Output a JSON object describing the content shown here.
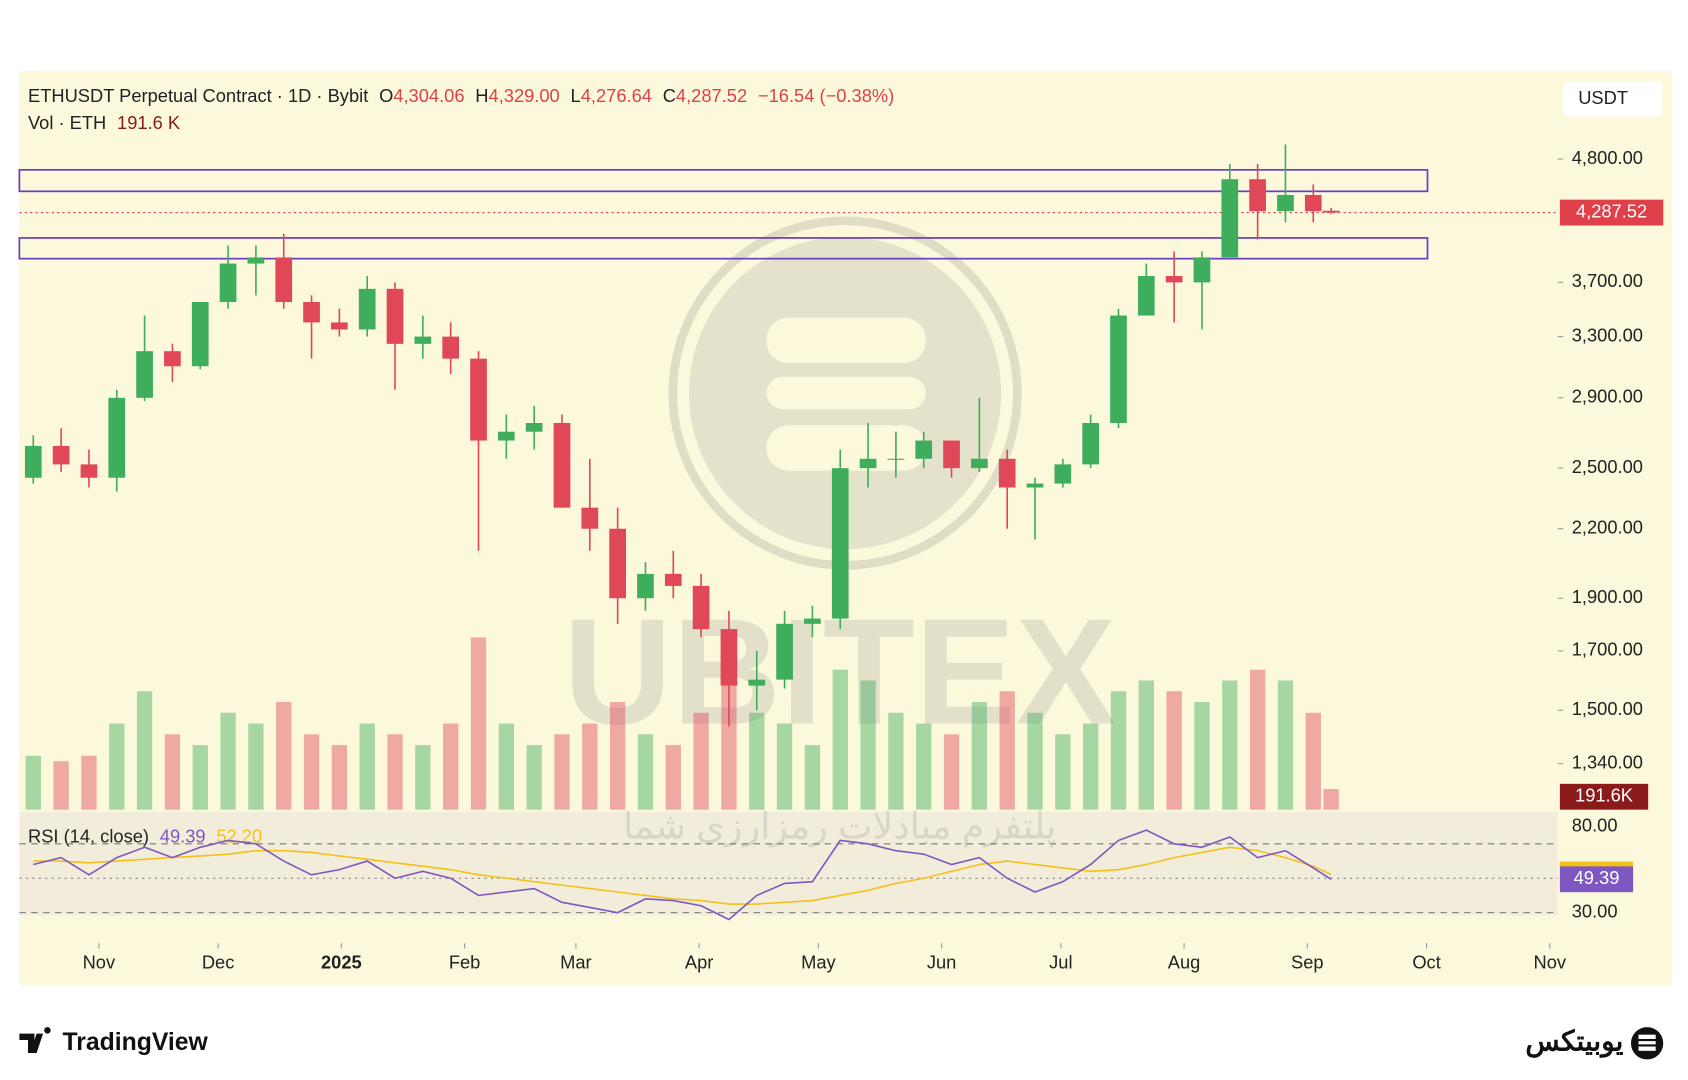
{
  "chart_data": {
    "type": "candlestick",
    "header": {
      "symbol": "ETHUSDT Perpetual Contract · 1D · Bybit",
      "open_label": "O",
      "open": "4,304.06",
      "high_label": "H",
      "high": "4,329.00",
      "low_label": "L",
      "low": "4,276.64",
      "close_label": "C",
      "close": "4,287.52",
      "change": "−16.54 (−0.38%)",
      "volume_label": "Vol · ETH",
      "volume": "191.6 K"
    },
    "currency": "USDT",
    "log_scale": true,
    "grid": false,
    "up_color": "#3fae5c",
    "down_color": "#e0485a",
    "xlim": [
      0,
      387
    ],
    "xticks": [
      {
        "value": 20,
        "label": "Nov"
      },
      {
        "value": 50,
        "label": "Dec"
      },
      {
        "value": 81,
        "label": "2025"
      },
      {
        "value": 112,
        "label": "Feb"
      },
      {
        "value": 140,
        "label": "Mar"
      },
      {
        "value": 171,
        "label": "Apr"
      },
      {
        "value": 201,
        "label": "May"
      },
      {
        "value": 232,
        "label": "Jun"
      },
      {
        "value": 262,
        "label": "Jul"
      },
      {
        "value": 293,
        "label": "Aug"
      },
      {
        "value": 324,
        "label": "Sep"
      },
      {
        "value": 354,
        "label": "Oct"
      },
      {
        "value": 385,
        "label": "Nov"
      }
    ],
    "ylim": [
      1216,
      5752
    ],
    "yticks": [
      {
        "value": 4800,
        "label": "4,800.00"
      },
      {
        "value": 3700,
        "label": "3,700.00"
      },
      {
        "value": 3300,
        "label": "3,300.00"
      },
      {
        "value": 2900,
        "label": "2,900.00"
      },
      {
        "value": 2500,
        "label": "2,500.00"
      },
      {
        "value": 2200,
        "label": "2,200.00"
      },
      {
        "value": 1900,
        "label": "1,900.00"
      },
      {
        "value": 1700,
        "label": "1,700.00"
      },
      {
        "value": 1500,
        "label": "1,500.00"
      },
      {
        "value": 1340,
        "label": "1,340.00"
      }
    ],
    "last_price": {
      "value": 4287.52,
      "label": "4,287.52"
    },
    "zones": {
      "color": "#6a3fc0",
      "ranges": [
        [
          4484,
          4692
        ],
        [
          3890,
          4064
        ]
      ]
    },
    "candles": {
      "x": [
        3.5,
        10.5,
        17.5,
        24.5,
        31.5,
        38.5,
        45.5,
        52.5,
        59.5,
        66.5,
        73.5,
        80.5,
        87.5,
        94.5,
        101.5,
        108.5,
        115.5,
        122.5,
        129.5,
        136.5,
        143.5,
        150.5,
        157.5,
        164.5,
        171.5,
        178.5,
        185.5,
        192.5,
        199.5,
        206.5,
        213.5,
        220.5,
        227.5,
        234.5,
        241.5,
        248.5,
        255.5,
        262.5,
        269.5,
        276.5,
        283.5,
        290.5,
        297.5,
        304.5,
        311.5,
        318.5,
        325.5,
        330
      ],
      "open": [
        2450,
        2620,
        2520,
        2450,
        2900,
        3200,
        3100,
        3550,
        3850,
        3900,
        3550,
        3400,
        3350,
        3650,
        3250,
        3300,
        3150,
        2650,
        2700,
        2750,
        2300,
        2200,
        1900,
        2000,
        1950,
        1780,
        1580,
        1600,
        1800,
        1820,
        2500,
        2550,
        2550,
        2650,
        2500,
        2550,
        2400,
        2420,
        2520,
        2750,
        3450,
        3750,
        3700,
        3900,
        4600,
        4300,
        4450,
        4304.06
      ],
      "high": [
        2680,
        2720,
        2600,
        2950,
        3450,
        3250,
        3550,
        4000,
        4000,
        4100,
        3600,
        3500,
        3750,
        3700,
        3450,
        3400,
        3200,
        2800,
        2850,
        2800,
        2550,
        2300,
        2050,
        2100,
        2000,
        1850,
        1700,
        1850,
        1870,
        2600,
        2750,
        2700,
        2700,
        2650,
        2900,
        2600,
        2450,
        2550,
        2800,
        3500,
        3850,
        3950,
        3950,
        4750,
        4750,
        4950,
        4550,
        4329
      ],
      "low": [
        2420,
        2480,
        2400,
        2380,
        2880,
        3000,
        3080,
        3500,
        3600,
        3500,
        3150,
        3300,
        3300,
        2950,
        3150,
        3050,
        2100,
        2550,
        2600,
        2300,
        2100,
        1800,
        1850,
        1900,
        1750,
        1450,
        1500,
        1570,
        1750,
        1780,
        2400,
        2450,
        2500,
        2450,
        2480,
        2200,
        2150,
        2400,
        2500,
        2720,
        3450,
        3400,
        3350,
        3900,
        4050,
        4200,
        4200,
        4276.64
      ],
      "close": [
        2620,
        2520,
        2450,
        2900,
        3200,
        3100,
        3550,
        3850,
        3900,
        3550,
        3400,
        3350,
        3650,
        3250,
        3300,
        3150,
        2650,
        2700,
        2750,
        2300,
        2200,
        1900,
        2000,
        1950,
        1780,
        1580,
        1600,
        1800,
        1820,
        2500,
        2550,
        2550,
        2650,
        2500,
        2550,
        2400,
        2420,
        2520,
        2750,
        3450,
        3750,
        3700,
        3900,
        4600,
        4300,
        4450,
        4300,
        4287.52
      ]
    },
    "volume": {
      "values": [
        500000,
        450000,
        500000,
        800000,
        1100000,
        700000,
        600000,
        900000,
        800000,
        1000000,
        700000,
        600000,
        800000,
        700000,
        600000,
        800000,
        1600000,
        800000,
        600000,
        700000,
        800000,
        1000000,
        700000,
        600000,
        900000,
        1300000,
        900000,
        800000,
        600000,
        1300000,
        1200000,
        900000,
        800000,
        700000,
        1000000,
        1100000,
        900000,
        700000,
        800000,
        1100000,
        1200000,
        1100000,
        1000000,
        1200000,
        1300000,
        1200000,
        900000,
        191600
      ],
      "label": "191.6K",
      "lim": [
        0,
        2000000
      ],
      "tag_color": "#8b1a1a"
    },
    "rsi": {
      "name": "RSI (14, close)",
      "value_label": "49.39",
      "ma_label": "52.20",
      "color": "#7e57c2",
      "ma_color": "#f2c21b",
      "values": [
        58,
        62,
        52,
        62,
        68,
        62,
        68,
        72,
        70,
        60,
        52,
        55,
        60,
        50,
        54,
        50,
        40,
        42,
        44,
        36,
        33,
        30,
        38,
        37,
        34,
        26,
        40,
        47,
        48,
        72,
        70,
        66,
        64,
        58,
        62,
        50,
        42,
        48,
        58,
        72,
        78,
        70,
        68,
        74,
        62,
        66,
        56,
        49.39
      ],
      "ma": [
        60,
        60,
        59,
        60,
        61,
        62,
        63,
        64,
        66,
        66,
        65,
        63,
        61,
        59,
        57,
        55,
        52,
        50,
        48,
        46,
        44,
        42,
        40,
        38,
        37,
        35,
        35,
        36,
        37,
        40,
        43,
        47,
        50,
        54,
        58,
        60,
        58,
        56,
        54,
        55,
        58,
        62,
        65,
        68,
        66,
        62,
        57,
        52.2
      ],
      "lim": [
        16,
        88
      ],
      "yticks": [
        {
          "value": 80,
          "label": "80.00"
        },
        {
          "value": 30,
          "label": "30.00"
        }
      ],
      "bands": [
        70,
        50,
        30
      ]
    },
    "watermark": {
      "brand": "UBITEX",
      "tagline": "پلتفرم مبادلات رمزارزی شما"
    },
    "footer": {
      "left": "TradingView",
      "right": "یوبیتکس"
    }
  }
}
